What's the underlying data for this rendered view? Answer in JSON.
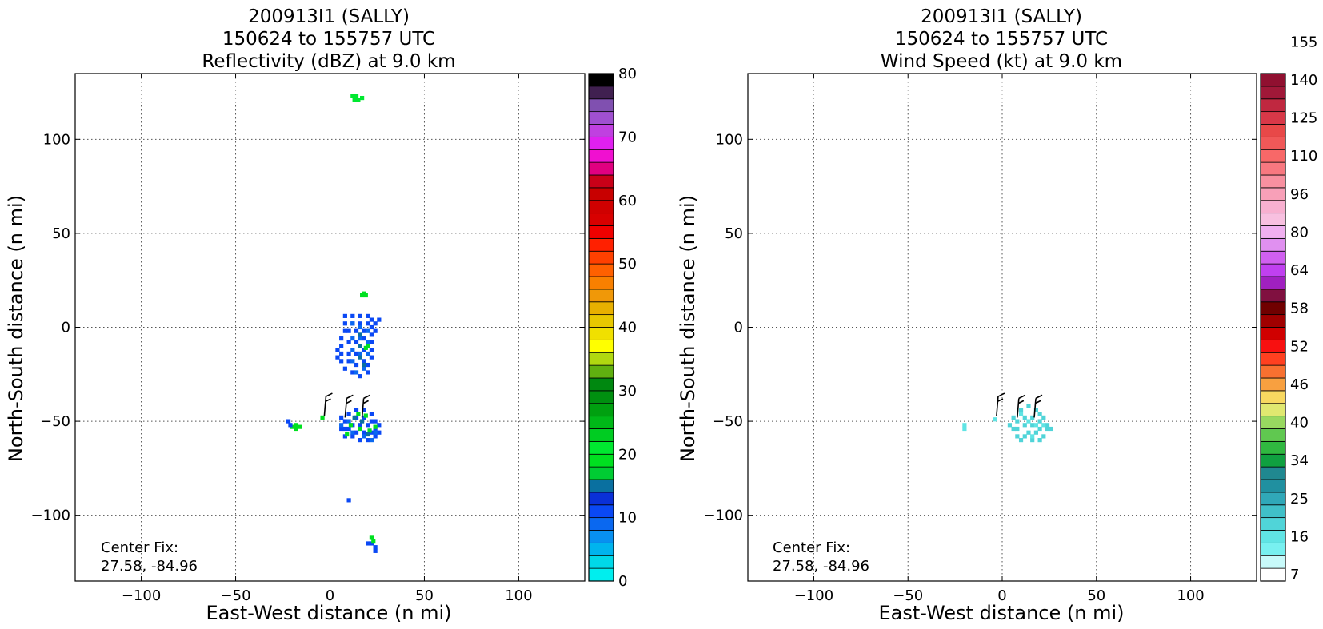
{
  "chart_data": [
    {
      "type": "heatmap",
      "title": [
        "200913I1 (SALLY)",
        "150624 to 155757 UTC",
        "Reflectivity (dBZ) at 9.0 km"
      ],
      "xlabel": "East-West distance (n mi)",
      "ylabel": "North-South distance (n mi)",
      "xlim": [
        -135,
        135
      ],
      "ylim": [
        -135,
        135
      ],
      "x_ticks": [
        -100,
        -50,
        0,
        50,
        100
      ],
      "y_ticks": [
        100,
        50,
        0,
        -50,
        -100
      ],
      "x_tick_labels": [
        "−100",
        "−50",
        "0",
        "50",
        "100"
      ],
      "y_tick_labels": [
        "100",
        "50",
        "0",
        "−50",
        "−100"
      ],
      "grid": true,
      "annotation": [
        "Center Fix:",
        "27.58, -84.96"
      ],
      "colorbar": {
        "min": 0,
        "max": 80,
        "step": 2.5,
        "ticks": [
          0,
          10,
          20,
          30,
          40,
          50,
          60,
          70,
          80
        ],
        "tick_labels": [
          "0",
          "10",
          "20",
          "30",
          "40",
          "50",
          "60",
          "70",
          "80"
        ],
        "colors": [
          "#00eeee",
          "#00d8e8",
          "#00b4ee",
          "#0890f0",
          "#0a68f0",
          "#0a48f5",
          "#0a30d8",
          "#0a70a0",
          "#00cc33",
          "#00e020",
          "#00e830",
          "#00cc22",
          "#00b818",
          "#00a010",
          "#009010",
          "#008810",
          "#60b010",
          "#b0d810",
          "#ffff00",
          "#f0e000",
          "#e8c800",
          "#e8b000",
          "#f09808",
          "#f88000",
          "#ff6000",
          "#ff4000",
          "#ff2000",
          "#f00000",
          "#d80000",
          "#d00000",
          "#c80000",
          "#c80018",
          "#e00080",
          "#f010d0",
          "#e020f0",
          "#c040e0",
          "#a050d0",
          "#8050b0",
          "#402050",
          "#000000"
        ]
      },
      "features": [
        {
          "name": "north-echo",
          "color_level": 10,
          "cells": [
            [
              12,
              123
            ],
            [
              14,
              123
            ],
            [
              13,
              121
            ],
            [
              15,
              121
            ],
            [
              17,
              122
            ]
          ]
        },
        {
          "name": "central-band",
          "color_level": 5,
          "cells": [
            [
              8,
              6
            ],
            [
              12,
              6
            ],
            [
              16,
              6
            ],
            [
              20,
              6
            ],
            [
              22,
              4
            ],
            [
              24,
              2
            ],
            [
              8,
              2
            ],
            [
              8,
              -2
            ],
            [
              6,
              -6
            ],
            [
              6,
              -10
            ],
            [
              6,
              -14
            ],
            [
              6,
              -18
            ],
            [
              8,
              -22
            ],
            [
              12,
              -24
            ],
            [
              16,
              -26
            ],
            [
              20,
              -24
            ],
            [
              20,
              -20
            ],
            [
              22,
              -16
            ],
            [
              22,
              -12
            ],
            [
              22,
              -8
            ],
            [
              22,
              -4
            ],
            [
              22,
              0
            ],
            [
              20,
              2
            ],
            [
              10,
              -2
            ],
            [
              10,
              -8
            ],
            [
              10,
              -14
            ],
            [
              10,
              -18
            ],
            [
              14,
              -20
            ],
            [
              18,
              -18
            ],
            [
              18,
              -12
            ],
            [
              18,
              -6
            ],
            [
              18,
              -2
            ],
            [
              14,
              -2
            ],
            [
              14,
              -8
            ],
            [
              14,
              -14
            ],
            [
              16,
              2
            ],
            [
              12,
              2
            ],
            [
              4,
              -12
            ],
            [
              4,
              -16
            ],
            [
              24,
              -2
            ],
            [
              26,
              4
            ]
          ]
        },
        {
          "name": "central-core",
          "color_level": 4,
          "cells": [
            [
              12,
              2
            ],
            [
              16,
              0
            ],
            [
              20,
              -2
            ],
            [
              12,
              -6
            ],
            [
              16,
              -6
            ],
            [
              20,
              -8
            ],
            [
              12,
              -12
            ],
            [
              16,
              -14
            ],
            [
              20,
              -14
            ],
            [
              12,
              -18
            ],
            [
              18,
              -22
            ],
            [
              14,
              -24
            ]
          ]
        },
        {
          "name": "central-green",
          "color_level": 9,
          "cells": [
            [
              18,
              18
            ],
            [
              19,
              17
            ],
            [
              17,
              17
            ],
            [
              20,
              -10
            ],
            [
              19,
              -11
            ]
          ]
        },
        {
          "name": "central-teal",
          "color_level": 7,
          "cells": [
            [
              16,
              -4
            ],
            [
              16,
              -10
            ],
            [
              16,
              -16
            ],
            [
              18,
              -20
            ]
          ]
        },
        {
          "name": "south-cluster",
          "color_level": 5,
          "cells": [
            [
              6,
              -48
            ],
            [
              8,
              -50
            ],
            [
              8,
              -54
            ],
            [
              8,
              -58
            ],
            [
              12,
              -58
            ],
            [
              16,
              -60
            ],
            [
              20,
              -60
            ],
            [
              24,
              -58
            ],
            [
              24,
              -54
            ],
            [
              24,
              -50
            ],
            [
              22,
              -46
            ],
            [
              18,
              -44
            ],
            [
              14,
              -44
            ],
            [
              10,
              -46
            ],
            [
              12,
              -52
            ],
            [
              16,
              -52
            ],
            [
              20,
              -52
            ],
            [
              14,
              -56
            ],
            [
              18,
              -56
            ],
            [
              22,
              -56
            ],
            [
              10,
              -54
            ],
            [
              6,
              -54
            ],
            [
              26,
              -52
            ],
            [
              26,
              -56
            ],
            [
              14,
              -48
            ],
            [
              18,
              -48
            ],
            [
              22,
              -50
            ]
          ]
        },
        {
          "name": "south-cluster-deep",
          "color_level": 4,
          "cells": [
            [
              10,
              -50
            ],
            [
              12,
              -56
            ],
            [
              18,
              -58
            ],
            [
              22,
              -60
            ],
            [
              24,
              -56
            ],
            [
              6,
              -52
            ]
          ]
        },
        {
          "name": "south-cluster-green",
          "color_level": 9,
          "cells": [
            [
              15,
              -46
            ],
            [
              19,
              -47
            ],
            [
              21,
              -55
            ],
            [
              11,
              -52
            ],
            [
              16,
              -54
            ],
            [
              24,
              -53
            ],
            [
              9,
              -57
            ]
          ]
        },
        {
          "name": "south-cluster-teal",
          "color_level": 7,
          "cells": [
            [
              17,
              -50
            ],
            [
              13,
              -48
            ],
            [
              20,
              -57
            ]
          ]
        },
        {
          "name": "west-echo",
          "color_level": 9,
          "cells": [
            [
              -18,
              -52
            ],
            [
              -18,
              -54
            ],
            [
              -20,
              -53
            ],
            [
              -4,
              -48
            ],
            [
              -16,
              -53
            ]
          ]
        },
        {
          "name": "west-echo-blue",
          "color_level": 5,
          "cells": [
            [
              -22,
              -50
            ],
            [
              -21,
              -52
            ]
          ]
        },
        {
          "name": "far-south-echo",
          "color_level": 5,
          "cells": [
            [
              20,
              -115
            ],
            [
              22,
              -115
            ],
            [
              24,
              -117
            ],
            [
              24,
              -119
            ],
            [
              10,
              -92
            ]
          ]
        },
        {
          "name": "far-south-green",
          "color_level": 9,
          "cells": [
            [
              22,
              -112
            ],
            [
              23,
              -114
            ]
          ]
        }
      ],
      "wind_barbs": [
        {
          "x": -3,
          "y": -47,
          "direction": "from-north"
        },
        {
          "x": 8,
          "y": -48,
          "direction": "from-north"
        },
        {
          "x": 17,
          "y": -48,
          "direction": "from-north"
        }
      ]
    },
    {
      "type": "heatmap",
      "title": [
        "200913I1 (SALLY)",
        "150624 to 155757 UTC",
        "Wind Speed (kt) at 9.0 km"
      ],
      "xlabel": "East-West distance (n mi)",
      "ylabel": "North-South distance (n mi)",
      "xlim": [
        -135,
        135
      ],
      "ylim": [
        -135,
        135
      ],
      "x_ticks": [
        -100,
        -50,
        0,
        50,
        100
      ],
      "y_ticks": [
        100,
        50,
        0,
        -50,
        -100
      ],
      "x_tick_labels": [
        "−100",
        "−50",
        "0",
        "50",
        "100"
      ],
      "y_tick_labels": [
        "100",
        "50",
        "0",
        "−50",
        "−100"
      ],
      "grid": true,
      "annotation": [
        "Center Fix:",
        "27.58, -84.96"
      ],
      "colorbar": {
        "n_levels": 40,
        "tick_labels": [
          "7",
          "16",
          "25",
          "34",
          "40",
          "46",
          "52",
          "58",
          "64",
          "80",
          "96",
          "110",
          "125",
          "140",
          "155"
        ],
        "tick_levels": [
          0.5,
          3.5,
          6.5,
          9.5,
          12.5,
          15.5,
          18.5,
          21.5,
          24.5,
          27.5,
          30.5,
          33.5,
          36.5,
          39.5,
          42.5
        ],
        "colors": [
          "#ffffff",
          "#c8fafa",
          "#78f0f0",
          "#60e4e4",
          "#50d4d8",
          "#40c0c8",
          "#30a8b8",
          "#2090a0",
          "#208890",
          "#10a040",
          "#30b840",
          "#60c850",
          "#98d860",
          "#e0e870",
          "#f8d860",
          "#f8a040",
          "#f87030",
          "#ff4020",
          "#f81010",
          "#d00000",
          "#a00000",
          "#700000",
          "#801040",
          "#a020c0",
          "#c040f0",
          "#d060f0",
          "#e090f0",
          "#f0b0f0",
          "#f8c0e0",
          "#f8b0d0",
          "#f8a0b8",
          "#f890a0",
          "#f87880",
          "#f86868",
          "#f05858",
          "#e84848",
          "#d83848",
          "#c02840",
          "#a01838",
          "#901030"
        ]
      },
      "features": [
        {
          "name": "south-cluster-wind",
          "color_level": 4,
          "cells": [
            [
              6,
              -48
            ],
            [
              8,
              -50
            ],
            [
              8,
              -54
            ],
            [
              8,
              -58
            ],
            [
              12,
              -58
            ],
            [
              16,
              -60
            ],
            [
              20,
              -60
            ],
            [
              22,
              -58
            ],
            [
              24,
              -54
            ],
            [
              24,
              -52
            ],
            [
              20,
              -46
            ],
            [
              18,
              -44
            ],
            [
              14,
              -42
            ],
            [
              10,
              -44
            ],
            [
              12,
              -48
            ],
            [
              16,
              -48
            ],
            [
              20,
              -50
            ],
            [
              12,
              -52
            ],
            [
              16,
              -52
            ],
            [
              20,
              -54
            ],
            [
              14,
              -56
            ],
            [
              18,
              -56
            ],
            [
              6,
              -54
            ],
            [
              4,
              -52
            ],
            [
              26,
              -54
            ],
            [
              10,
              -60
            ],
            [
              22,
              -48
            ]
          ]
        },
        {
          "name": "south-cluster-wind-light",
          "color_level": 3,
          "cells": [
            [
              10,
              -46
            ],
            [
              14,
              -50
            ],
            [
              18,
              -52
            ],
            [
              22,
              -52
            ],
            [
              16,
              -58
            ]
          ]
        },
        {
          "name": "west-wind",
          "color_level": 3,
          "cells": [
            [
              -20,
              -52
            ],
            [
              -20,
              -54
            ],
            [
              -4,
              -49
            ]
          ]
        }
      ],
      "wind_barbs": [
        {
          "x": -3,
          "y": -47,
          "direction": "from-north"
        },
        {
          "x": 8,
          "y": -48,
          "direction": "from-north"
        },
        {
          "x": 17,
          "y": -48,
          "direction": "from-north"
        }
      ]
    }
  ]
}
